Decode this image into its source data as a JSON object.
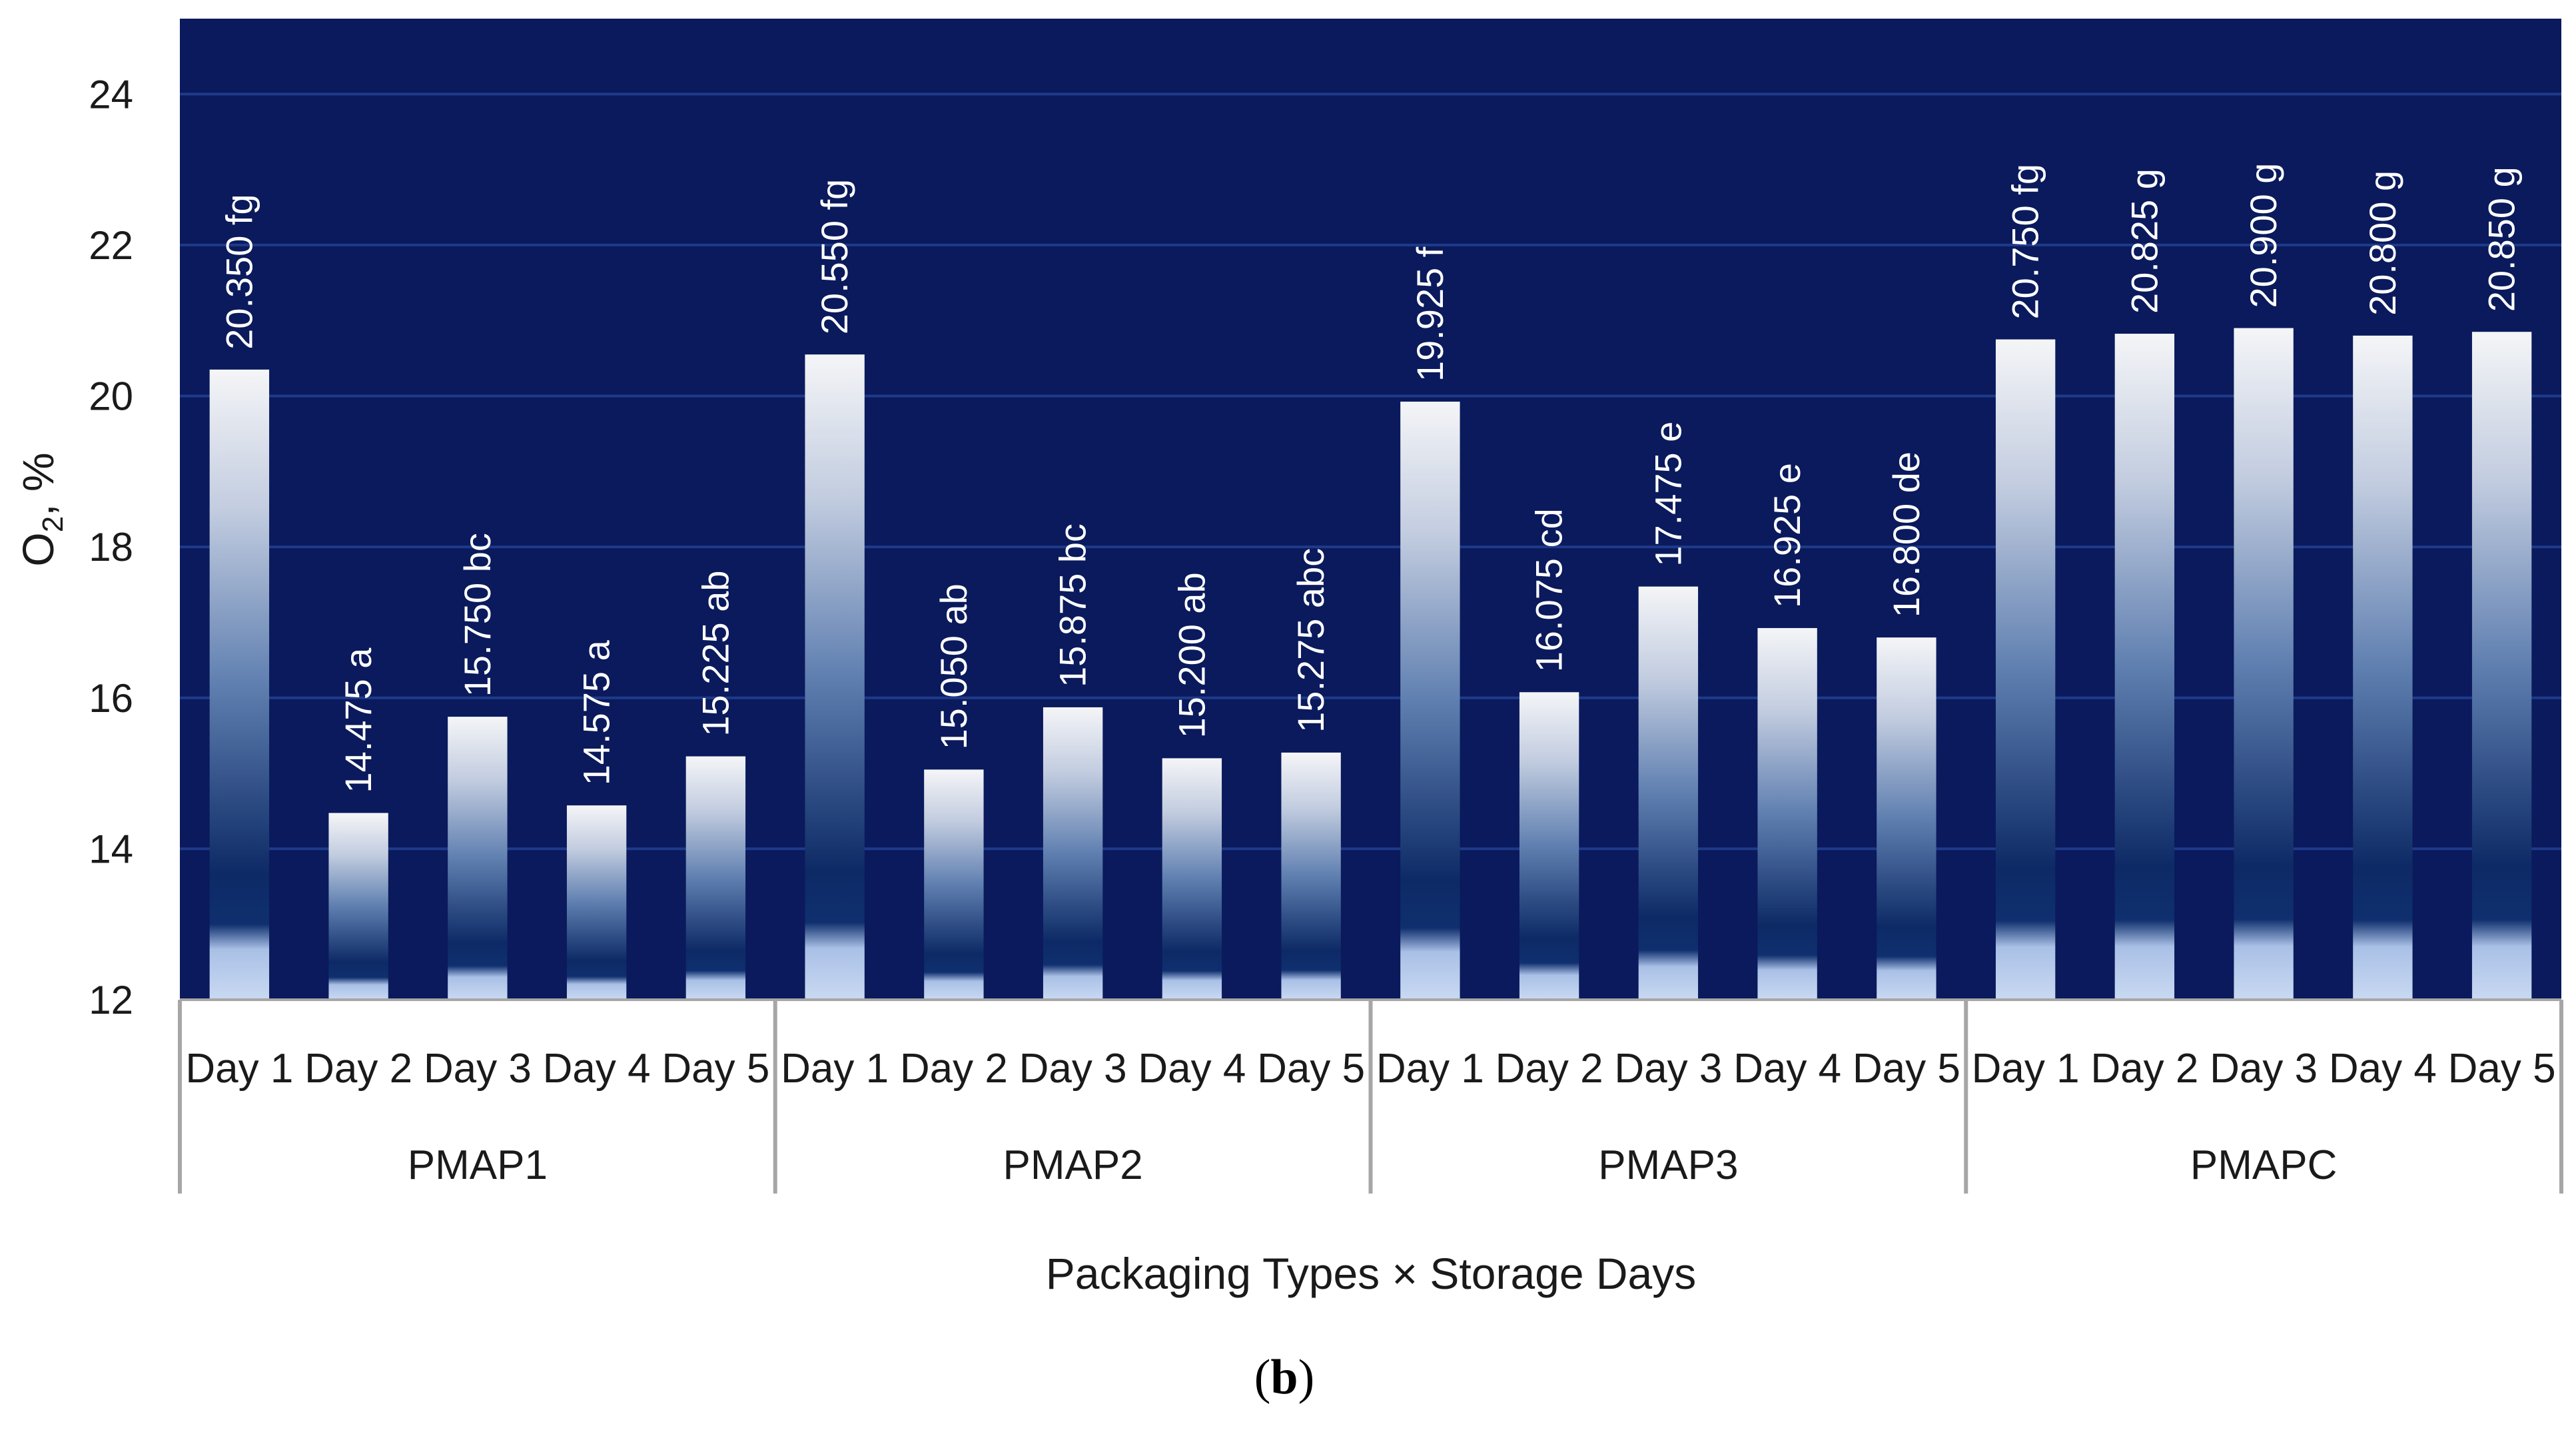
{
  "chart_data": {
    "type": "bar",
    "ylabel": "O",
    "ylabel_sub": "2",
    "ylabel_suffix": ", %",
    "xlabel": "Packaging Types × Storage Days",
    "panel_label": "b",
    "ylim": [
      12,
      25
    ],
    "yticks": [
      12,
      14,
      16,
      18,
      20,
      22,
      24
    ],
    "grid": true,
    "colors": {
      "plot_bg": "#0a1a5c",
      "gridline": "#1e3a8a",
      "bar_top": "#f4f5f7",
      "bar_mid": "#0f2f6e",
      "bar_base": "#c9d9f2",
      "label": "#ffffff",
      "axis_line": "#a6a6a6"
    },
    "groups": [
      {
        "name": "PMAP1",
        "categories": [
          "Day 1",
          "Day 2",
          "Day 3",
          "Day 4",
          "Day 5"
        ],
        "values": [
          20.35,
          14.475,
          15.75,
          14.575,
          15.225
        ],
        "labels": [
          "20.350 fg",
          "14.475 a",
          "15.750 bc",
          "14.575 a",
          "15.225 ab"
        ]
      },
      {
        "name": "PMAP2",
        "categories": [
          "Day 1",
          "Day 2",
          "Day 3",
          "Day 4",
          "Day 5"
        ],
        "values": [
          20.55,
          15.05,
          15.875,
          15.2,
          15.275
        ],
        "labels": [
          "20.550 fg",
          "15.050 ab",
          "15.875 bc",
          "15.200 ab",
          "15.275 abc"
        ]
      },
      {
        "name": "PMAP3",
        "categories": [
          "Day 1",
          "Day 2",
          "Day 3",
          "Day 4",
          "Day 5"
        ],
        "values": [
          19.925,
          16.075,
          17.475,
          16.925,
          16.8
        ],
        "labels": [
          "19.925 f",
          "16.075 cd",
          "17.475 e",
          "16.925 e",
          "16.800 de"
        ]
      },
      {
        "name": "PMAPC",
        "categories": [
          "Day 1",
          "Day 2",
          "Day 3",
          "Day 4",
          "Day 5"
        ],
        "values": [
          20.75,
          20.825,
          20.9,
          20.8,
          20.85
        ],
        "labels": [
          "20.750 fg",
          "20.825 g",
          "20.900 g",
          "20.800 g",
          "20.850 g"
        ]
      }
    ]
  }
}
